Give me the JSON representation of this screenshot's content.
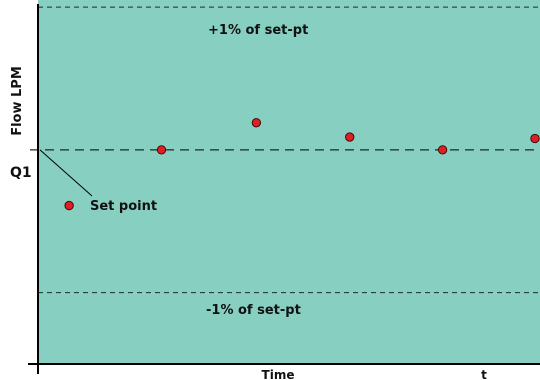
{
  "chart_data": {
    "type": "scatter",
    "title": "",
    "xlabel": "Time",
    "ylabel": "Flow LPM",
    "x_end_label": "t",
    "y_tick_label": "Q1",
    "setpoint_annotation": "Set point",
    "reference_lines": [
      {
        "label": "+1% of set-pt",
        "y": 1
      },
      {
        "label": "Q1",
        "y": 0
      },
      {
        "label": "-1% of set-pt",
        "y": -1
      }
    ],
    "ylim": [
      -1.5,
      1.05
    ],
    "xlim": [
      0,
      10
    ],
    "points": [
      {
        "x": 0.62,
        "y": -0.39
      },
      {
        "x": 2.46,
        "y": 0.0
      },
      {
        "x": 4.35,
        "y": 0.19
      },
      {
        "x": 6.21,
        "y": 0.09
      },
      {
        "x": 8.06,
        "y": 0.0
      },
      {
        "x": 9.9,
        "y": 0.08
      }
    ],
    "grid": false,
    "colors": {
      "plot_background": "#86cfc1",
      "point_fill": "#dd1f26",
      "point_stroke": "#3a0000",
      "axis": "#000000",
      "dashed_line": "#1e2a29"
    }
  }
}
